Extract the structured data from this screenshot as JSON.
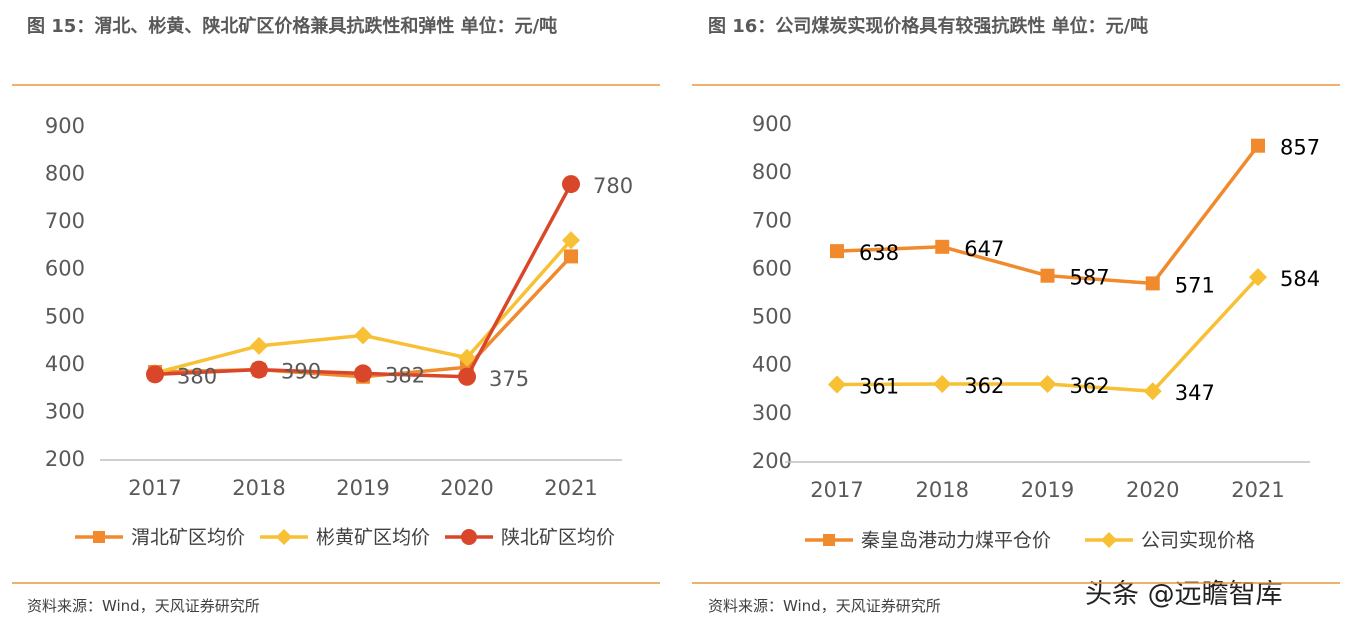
{
  "chart_data": [
    {
      "type": "line",
      "title": "图 15：渭北、彬黄、陕北矿区价格兼具抗跌性和弹性 单位：元/吨",
      "categories": [
        "2017",
        "2018",
        "2019",
        "2020",
        "2021"
      ],
      "series": [
        {
          "name": "渭北矿区均价",
          "color": "#f08a2c",
          "marker": "square",
          "values": [
            385,
            390,
            375,
            395,
            628
          ]
        },
        {
          "name": "彬黄矿区均价",
          "color": "#f7c035",
          "marker": "diamond",
          "values": [
            383,
            440,
            462,
            415,
            662
          ]
        },
        {
          "name": "陕北矿区均价",
          "color": "#d9472b",
          "marker": "circle",
          "values": [
            380,
            390,
            382,
            375,
            780
          ],
          "data_labels": true
        }
      ],
      "ylim": [
        200,
        900
      ],
      "yticks": [
        200,
        300,
        400,
        500,
        600,
        700,
        800,
        900
      ],
      "grid": false,
      "label_color": "#595959",
      "legend": "bottom",
      "source": "资料来源：Wind，天风证券研究所"
    },
    {
      "type": "line",
      "title": "图 16：公司煤炭实现价格具有较强抗跌性 单位：元/吨",
      "categories": [
        "2017",
        "2018",
        "2019",
        "2020",
        "2021"
      ],
      "series": [
        {
          "name": "秦皇岛港动力煤平仓价",
          "color": "#f08a2c",
          "marker": "square",
          "values": [
            638,
            647,
            587,
            571,
            857
          ],
          "data_labels": true
        },
        {
          "name": "公司实现价格",
          "color": "#f7c035",
          "marker": "diamond",
          "values": [
            361,
            362,
            362,
            347,
            584
          ],
          "data_labels": true
        }
      ],
      "ylim": [
        200,
        900
      ],
      "yticks": [
        200,
        300,
        400,
        500,
        600,
        700,
        800,
        900
      ],
      "grid": false,
      "label_color": "#000000",
      "legend": "bottom",
      "source": "资料来源：Wind，天风证券研究所"
    }
  ],
  "watermark": "头条 @远瞻智库"
}
